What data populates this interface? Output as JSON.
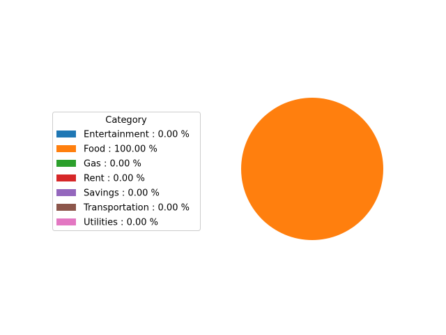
{
  "chart_data": {
    "type": "pie",
    "title": "",
    "legend": {
      "title": "Category",
      "placement": "center-left"
    },
    "slices": [
      {
        "label": "Entertainment",
        "legend_text": "Entertainment : 0.00 %",
        "percent": 0.0,
        "color": "#1f77b4"
      },
      {
        "label": "Food",
        "legend_text": "Food : 100.00 %",
        "percent": 100.0,
        "color": "#ff7f0e"
      },
      {
        "label": "Gas",
        "legend_text": "Gas : 0.00 %",
        "percent": 0.0,
        "color": "#2ca02c"
      },
      {
        "label": "Rent",
        "legend_text": "Rent : 0.00 %",
        "percent": 0.0,
        "color": "#d62728"
      },
      {
        "label": "Savings",
        "legend_text": "Savings : 0.00 %",
        "percent": 0.0,
        "color": "#9467bd"
      },
      {
        "label": "Transportation",
        "legend_text": "Transportation : 0.00 %",
        "percent": 0.0,
        "color": "#8c564b"
      },
      {
        "label": "Utilities",
        "legend_text": "Utilities : 0.00 %",
        "percent": 0.0,
        "color": "#e377c2"
      }
    ]
  }
}
